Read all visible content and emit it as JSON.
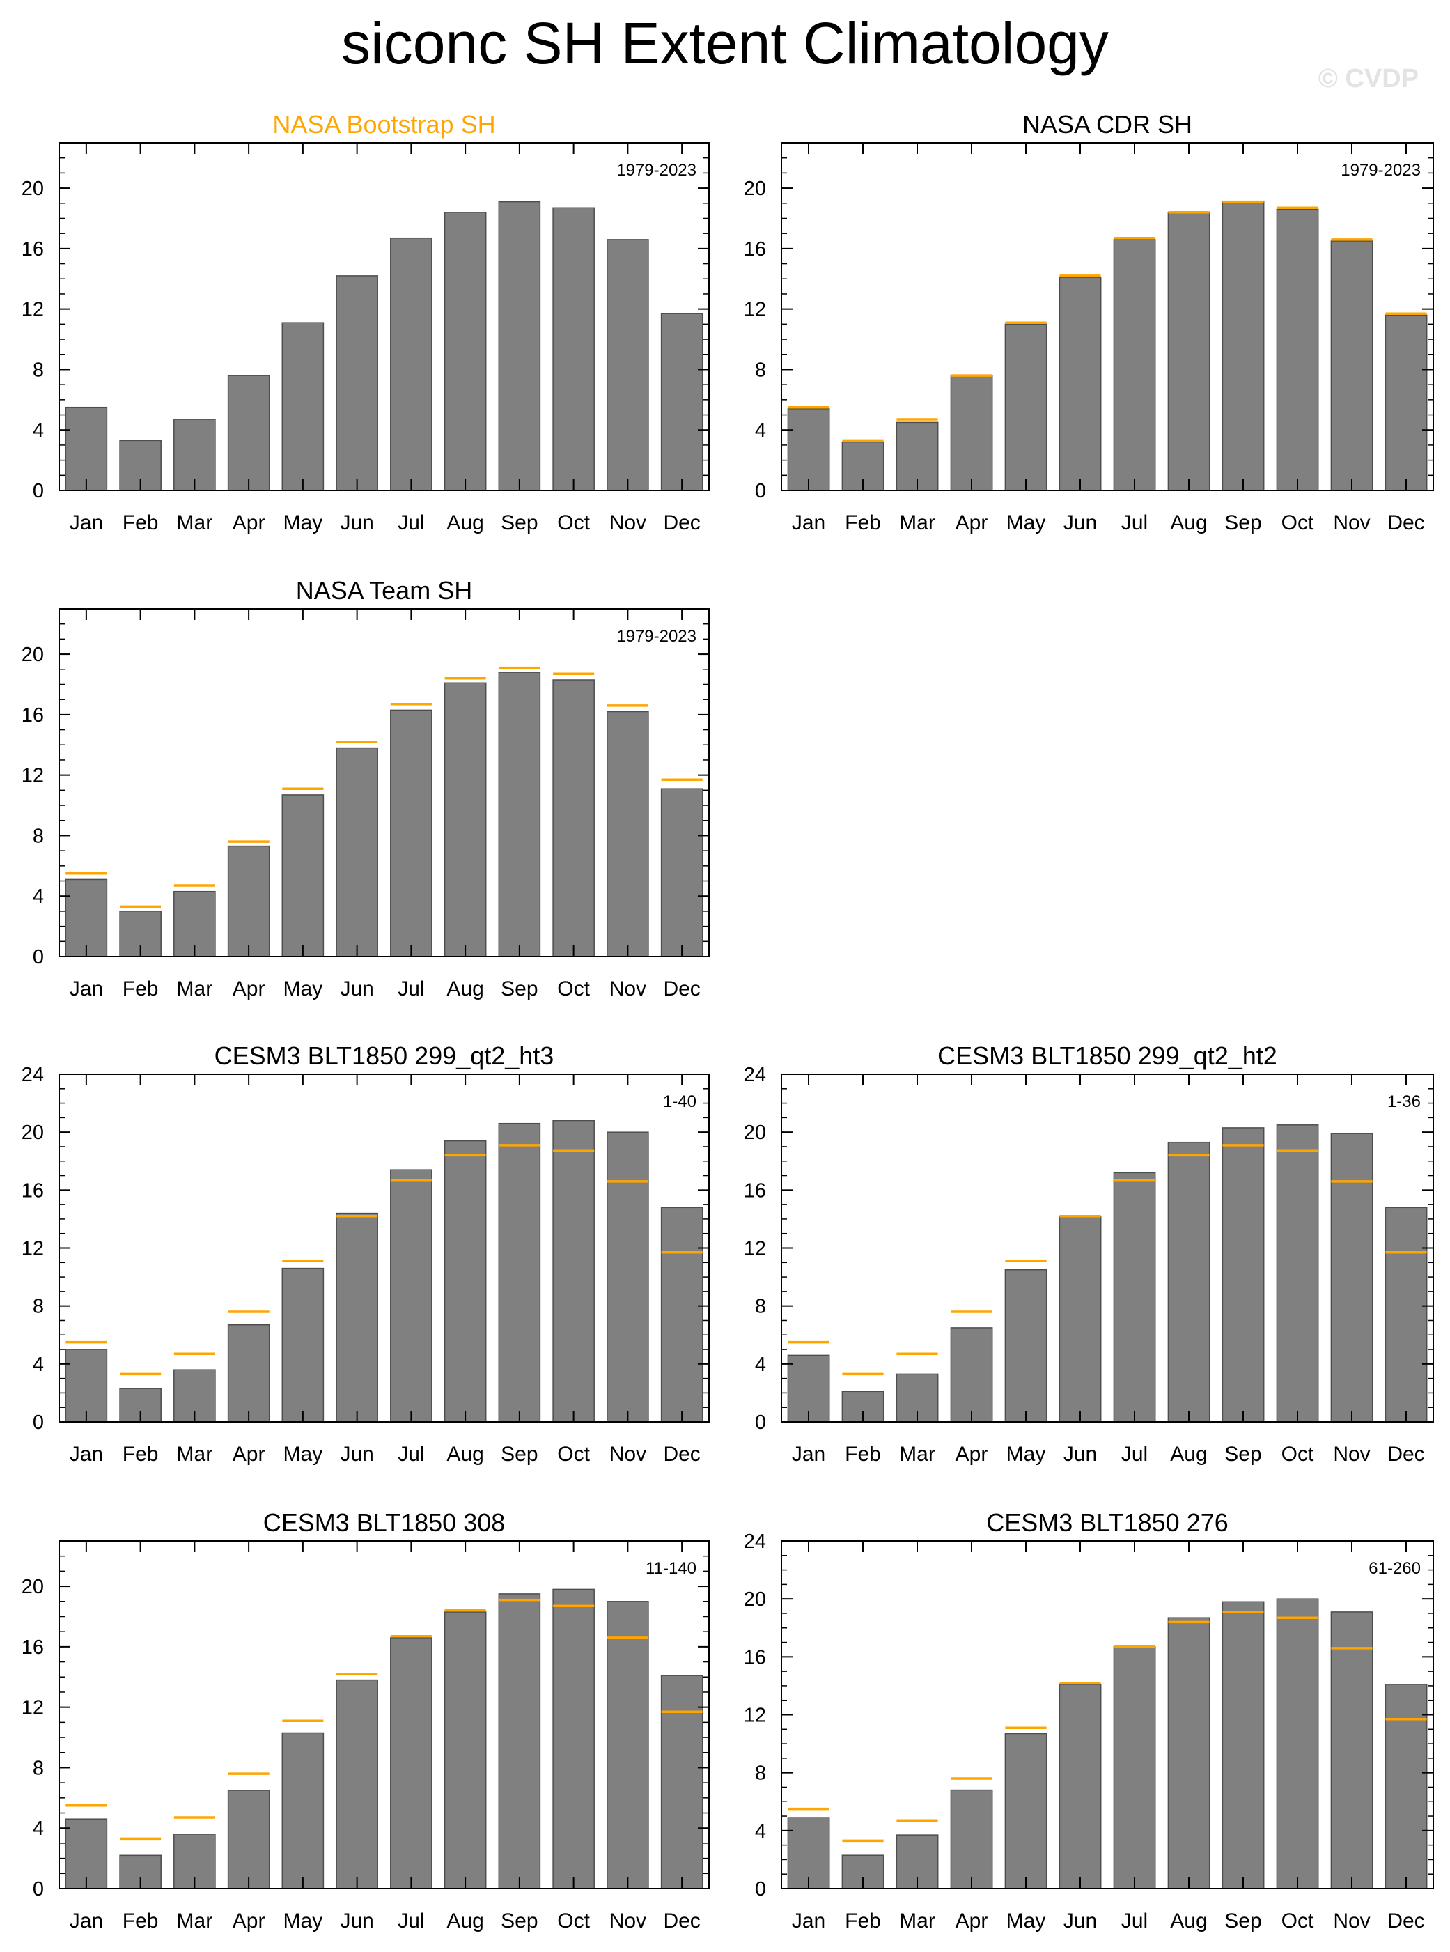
{
  "title": "siconc SH Extent Climatology",
  "watermark": "© CVDP",
  "colors": {
    "bar": "#808080",
    "bar_edge": "#4d4d4d",
    "reference": "#ffa500",
    "axis": "#000000",
    "highlight_title": "#ffa500"
  },
  "chart_data": [
    {
      "type": "bar",
      "title": "NASA Bootstrap SH",
      "title_highlight": true,
      "period": "1979-2023",
      "categories": [
        "Jan",
        "Feb",
        "Mar",
        "Apr",
        "May",
        "Jun",
        "Jul",
        "Aug",
        "Sep",
        "Oct",
        "Nov",
        "Dec"
      ],
      "values": [
        5.5,
        3.3,
        4.7,
        7.6,
        11.1,
        14.2,
        16.7,
        18.4,
        19.1,
        18.7,
        16.6,
        11.7
      ],
      "reference": null,
      "ylim": [
        0,
        23
      ],
      "yticks": [
        0,
        4,
        8,
        12,
        16,
        20
      ],
      "minor_step": 1
    },
    {
      "type": "bar",
      "title": "NASA CDR SH",
      "title_highlight": false,
      "period": "1979-2023",
      "categories": [
        "Jan",
        "Feb",
        "Mar",
        "Apr",
        "May",
        "Jun",
        "Jul",
        "Aug",
        "Sep",
        "Oct",
        "Nov",
        "Dec"
      ],
      "values": [
        5.4,
        3.2,
        4.5,
        7.6,
        11.0,
        14.1,
        16.6,
        18.4,
        19.1,
        18.6,
        16.5,
        11.6
      ],
      "reference": [
        5.5,
        3.3,
        4.7,
        7.6,
        11.1,
        14.2,
        16.7,
        18.4,
        19.1,
        18.7,
        16.6,
        11.7
      ],
      "ylim": [
        0,
        23
      ],
      "yticks": [
        0,
        4,
        8,
        12,
        16,
        20
      ],
      "minor_step": 1
    },
    {
      "type": "bar",
      "title": "NASA Team SH",
      "title_highlight": false,
      "period": "1979-2023",
      "categories": [
        "Jan",
        "Feb",
        "Mar",
        "Apr",
        "May",
        "Jun",
        "Jul",
        "Aug",
        "Sep",
        "Oct",
        "Nov",
        "Dec"
      ],
      "values": [
        5.1,
        3.0,
        4.3,
        7.3,
        10.7,
        13.8,
        16.3,
        18.1,
        18.8,
        18.3,
        16.2,
        11.1
      ],
      "reference": [
        5.5,
        3.3,
        4.7,
        7.6,
        11.1,
        14.2,
        16.7,
        18.4,
        19.1,
        18.7,
        16.6,
        11.7
      ],
      "ylim": [
        0,
        23
      ],
      "yticks": [
        0,
        4,
        8,
        12,
        16,
        20
      ],
      "minor_step": 1
    },
    {
      "type": "bar",
      "title": "CESM3 BLT1850 299_qt2_ht3",
      "title_highlight": false,
      "period": "1-40",
      "categories": [
        "Jan",
        "Feb",
        "Mar",
        "Apr",
        "May",
        "Jun",
        "Jul",
        "Aug",
        "Sep",
        "Oct",
        "Nov",
        "Dec"
      ],
      "values": [
        5.0,
        2.3,
        3.6,
        6.7,
        10.6,
        14.4,
        17.4,
        19.4,
        20.6,
        20.8,
        20.0,
        14.8
      ],
      "reference": [
        5.5,
        3.3,
        4.7,
        7.6,
        11.1,
        14.2,
        16.7,
        18.4,
        19.1,
        18.7,
        16.6,
        11.7
      ],
      "ylim": [
        0,
        24
      ],
      "yticks": [
        0,
        4,
        8,
        12,
        16,
        20,
        24
      ],
      "minor_step": 1
    },
    {
      "type": "bar",
      "title": "CESM3 BLT1850 299_qt2_ht2",
      "title_highlight": false,
      "period": "1-36",
      "categories": [
        "Jan",
        "Feb",
        "Mar",
        "Apr",
        "May",
        "Jun",
        "Jul",
        "Aug",
        "Sep",
        "Oct",
        "Nov",
        "Dec"
      ],
      "values": [
        4.6,
        2.1,
        3.3,
        6.5,
        10.5,
        14.2,
        17.2,
        19.3,
        20.3,
        20.5,
        19.9,
        14.8
      ],
      "reference": [
        5.5,
        3.3,
        4.7,
        7.6,
        11.1,
        14.2,
        16.7,
        18.4,
        19.1,
        18.7,
        16.6,
        11.7
      ],
      "ylim": [
        0,
        24
      ],
      "yticks": [
        0,
        4,
        8,
        12,
        16,
        20,
        24
      ],
      "minor_step": 1
    },
    {
      "type": "bar",
      "title": "CESM3 BLT1850 308",
      "title_highlight": false,
      "period": "11-140",
      "categories": [
        "Jan",
        "Feb",
        "Mar",
        "Apr",
        "May",
        "Jun",
        "Jul",
        "Aug",
        "Sep",
        "Oct",
        "Nov",
        "Dec"
      ],
      "values": [
        4.6,
        2.2,
        3.6,
        6.5,
        10.3,
        13.8,
        16.6,
        18.3,
        19.5,
        19.8,
        19.0,
        14.1
      ],
      "reference": [
        5.5,
        3.3,
        4.7,
        7.6,
        11.1,
        14.2,
        16.7,
        18.4,
        19.1,
        18.7,
        16.6,
        11.7
      ],
      "ylim": [
        0,
        23
      ],
      "yticks": [
        0,
        4,
        8,
        12,
        16,
        20
      ],
      "minor_step": 1
    },
    {
      "type": "bar",
      "title": "CESM3 BLT1850 276",
      "title_highlight": false,
      "period": "61-260",
      "categories": [
        "Jan",
        "Feb",
        "Mar",
        "Apr",
        "May",
        "Jun",
        "Jul",
        "Aug",
        "Sep",
        "Oct",
        "Nov",
        "Dec"
      ],
      "values": [
        4.9,
        2.3,
        3.7,
        6.8,
        10.7,
        14.1,
        16.7,
        18.7,
        19.8,
        20.0,
        19.1,
        14.1
      ],
      "reference": [
        5.5,
        3.3,
        4.7,
        7.6,
        11.1,
        14.2,
        16.7,
        18.4,
        19.1,
        18.7,
        16.6,
        11.7
      ],
      "ylim": [
        0,
        24
      ],
      "yticks": [
        0,
        4,
        8,
        12,
        16,
        20,
        24
      ],
      "minor_step": 1
    }
  ]
}
